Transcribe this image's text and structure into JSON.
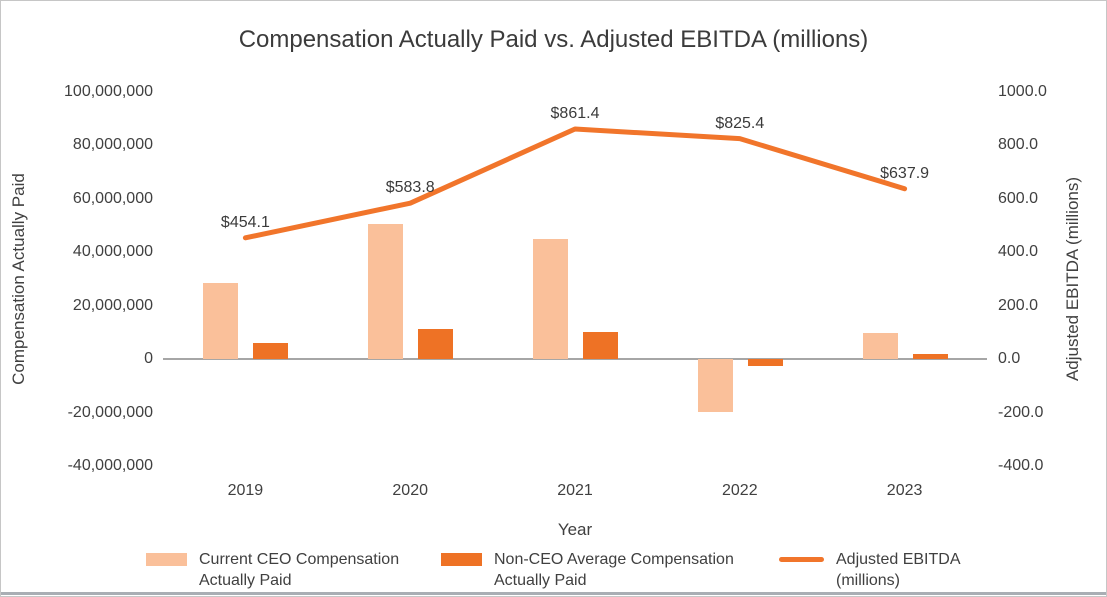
{
  "chart_data": {
    "type": "combo-bar-line",
    "title": "Compensation Actually Paid vs. Adjusted EBITDA (millions)",
    "categories": [
      "2019",
      "2020",
      "2021",
      "2022",
      "2023"
    ],
    "xlabel": "Year",
    "series": [
      {
        "name": "Current CEO Compensation Actually Paid",
        "type": "bar",
        "axis": "left",
        "color": "#FAC09A",
        "values": [
          28500000,
          50500000,
          45000000,
          -19700000,
          9700000
        ]
      },
      {
        "name": "Non-CEO Average Compensation Actually Paid",
        "type": "bar",
        "axis": "left",
        "color": "#EE7225",
        "values": [
          6200000,
          11200000,
          10100000,
          -2600000,
          2000000
        ]
      },
      {
        "name": "Adjusted EBITDA (millions)",
        "type": "line",
        "axis": "right",
        "color": "#F1752B",
        "values": [
          454.1,
          583.8,
          861.4,
          825.4,
          637.9
        ],
        "point_labels": [
          "$454.1",
          "$583.8",
          "$861.4",
          "$825.4",
          "$637.9"
        ]
      }
    ],
    "left_axis": {
      "label": "Compensation Actually Paid",
      "min": -40000000,
      "max": 100000000,
      "step": 20000000,
      "tick_labels": [
        "100,000,000",
        "80,000,000",
        "60,000,000",
        "40,000,000",
        "20,000,000",
        "0",
        "-20,000,000",
        "-40,000,000"
      ]
    },
    "right_axis": {
      "label": "Adjusted EBITDA (millions)",
      "min": -400,
      "max": 1000,
      "step": 200,
      "tick_labels": [
        "1000.0",
        "800.0",
        "600.0",
        "400.0",
        "200.0",
        "0.0",
        "-200.0",
        "-400.0"
      ]
    },
    "legend_position": "bottom",
    "grid": false,
    "colors": {
      "axis_line": "#A6A6A6",
      "text": "#404040"
    }
  }
}
